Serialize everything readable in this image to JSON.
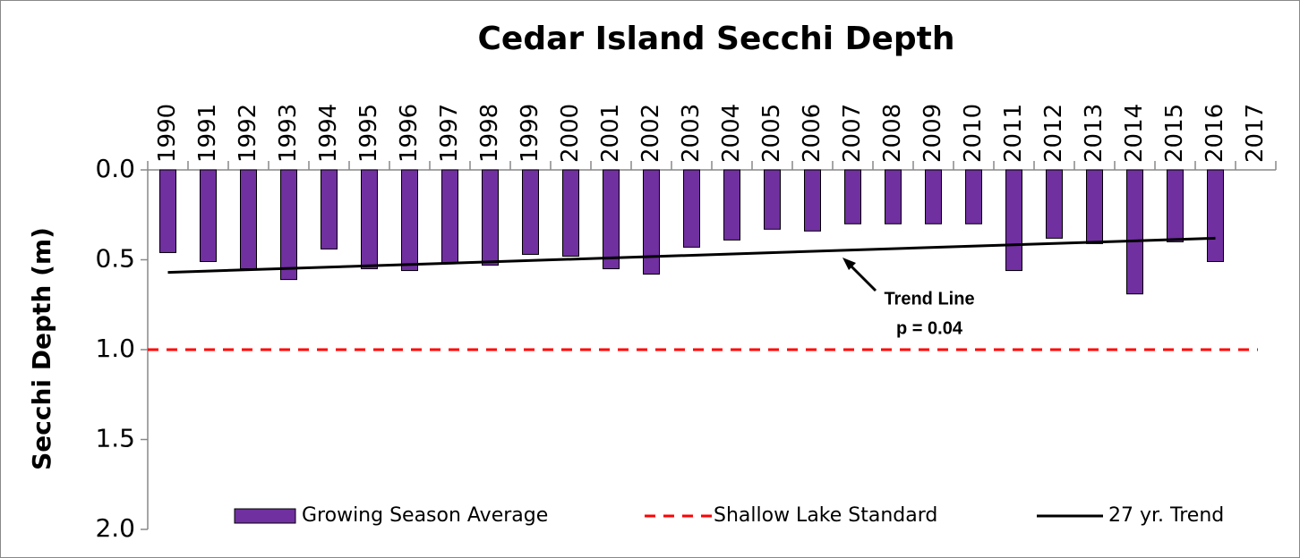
{
  "chart_data": {
    "type": "bar",
    "title": "Cedar Island Secchi Depth",
    "y_label": "Secchi Depth (m)",
    "categories": [
      "1990",
      "1991",
      "1992",
      "1993",
      "1994",
      "1995",
      "1996",
      "1997",
      "1998",
      "1999",
      "2000",
      "2001",
      "2002",
      "2003",
      "2004",
      "2005",
      "2006",
      "2007",
      "2008",
      "2009",
      "2010",
      "2011",
      "2012",
      "2013",
      "2014",
      "2015",
      "2016",
      "2017"
    ],
    "series": [
      {
        "name": "Growing Season Average",
        "color": "#7030a0",
        "values": [
          0.46,
          0.51,
          0.55,
          0.61,
          0.44,
          0.55,
          0.56,
          0.52,
          0.53,
          0.47,
          0.48,
          0.55,
          0.58,
          0.43,
          0.39,
          0.33,
          0.34,
          0.3,
          0.3,
          0.3,
          0.3,
          0.56,
          0.38,
          0.41,
          0.69,
          0.4,
          0.51,
          null
        ]
      },
      {
        "name": "Shallow Lake Standard",
        "color": "#ff0000",
        "value": 1.0
      },
      {
        "name": "27 yr. Trend",
        "color": "#000000",
        "x": [
          "1990",
          "2016"
        ],
        "values": [
          0.57,
          0.38
        ]
      }
    ],
    "annotations": [
      "Trend Line",
      "p = 0.04"
    ],
    "ylim": [
      0,
      2
    ],
    "y_reversed": true,
    "yticks": [
      {
        "value": 0,
        "label": "0.0"
      },
      {
        "value": 0.5,
        "label": "0.5"
      },
      {
        "value": 1,
        "label": "1.0"
      },
      {
        "value": 1.5,
        "label": "1.5"
      },
      {
        "value": 2,
        "label": "2.0"
      }
    ]
  }
}
